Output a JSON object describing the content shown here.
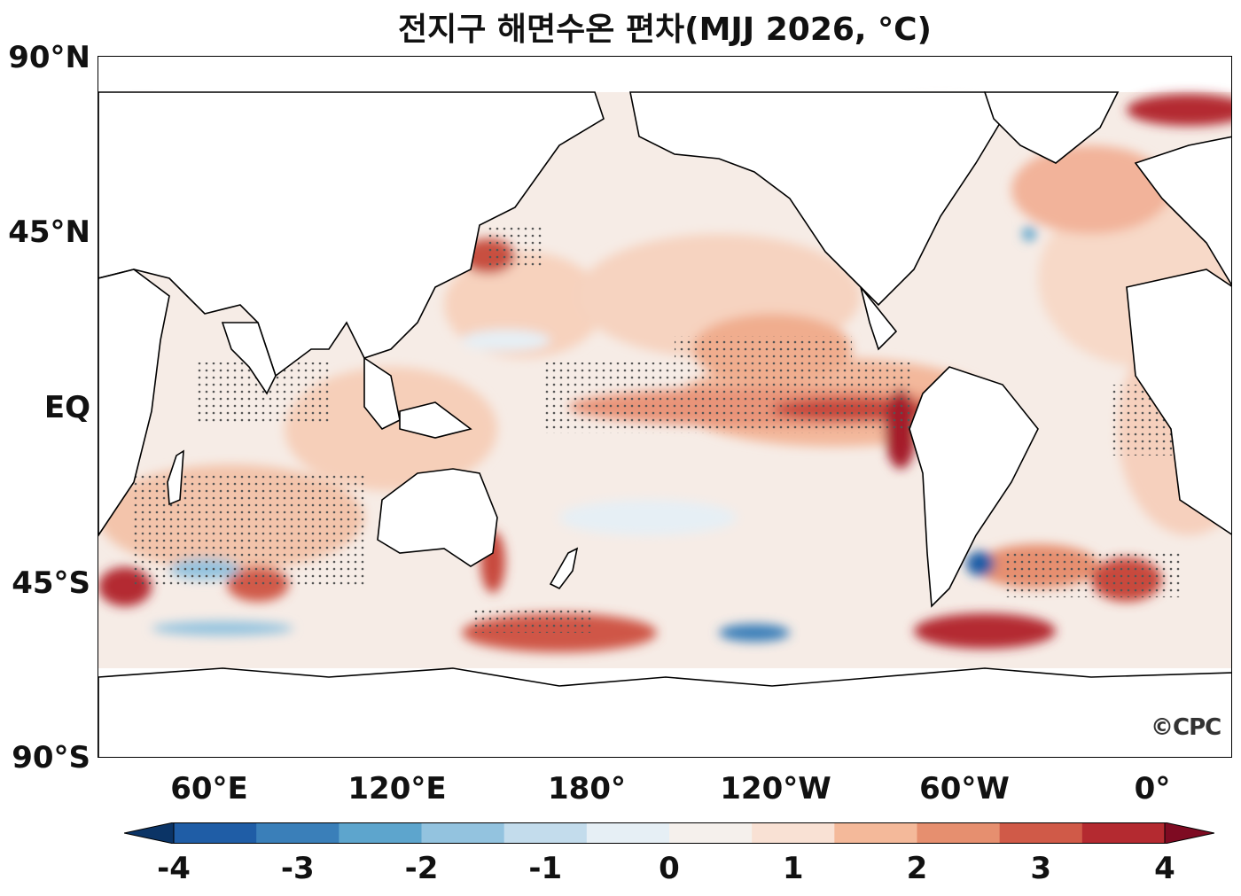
{
  "title": "전지구 해면수온 편차(MJJ 2026, °C)",
  "lat_labels": [
    "90°N",
    "45°N",
    "EQ",
    "45°S",
    "90°S"
  ],
  "lon_labels": [
    "60°E",
    "120°E",
    "180°",
    "120°W",
    "60°W",
    "0°"
  ],
  "colorbar": {
    "tick_labels": [
      "-4",
      "-3",
      "-2",
      "-1",
      "0",
      "1",
      "2",
      "3",
      "4"
    ],
    "min": -4,
    "max": 4,
    "step": 0.5,
    "colors": [
      "#0b3466",
      "#1f5da6",
      "#3a7fb9",
      "#5da5cd",
      "#93c3df",
      "#c3dcec",
      "#e6eff5",
      "#f5f0ec",
      "#f9e1d4",
      "#f4b99a",
      "#e68f6f",
      "#d05a48",
      "#b42a30",
      "#7e0b22"
    ],
    "extend": "both"
  },
  "credit": "©CPC"
}
